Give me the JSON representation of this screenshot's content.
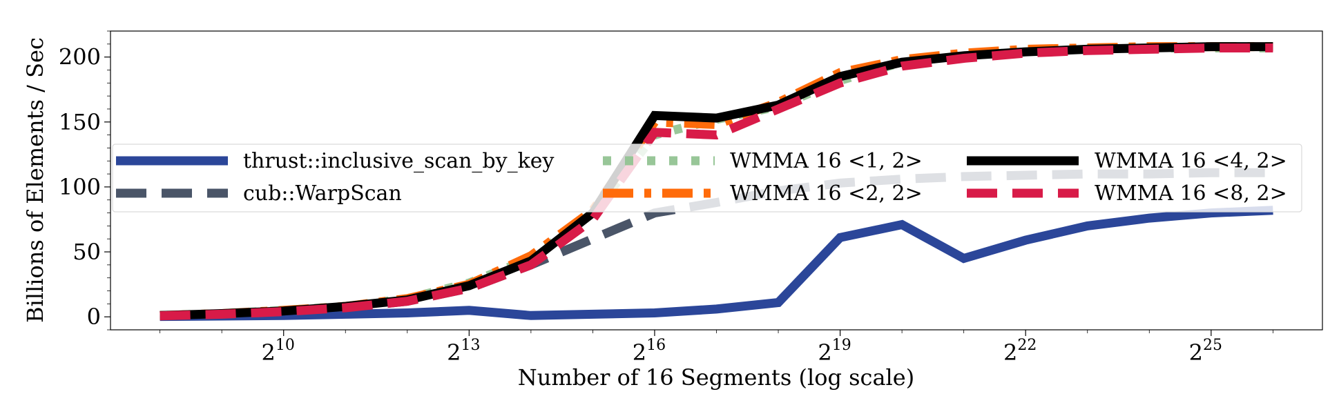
{
  "chart_data": {
    "type": "line",
    "title": "",
    "xlabel": "Number of 16 Segments (log scale)",
    "ylabel": "Billions of Elements / Sec",
    "x_scale": "log2",
    "x_ticks": [
      10,
      13,
      16,
      19,
      22,
      25
    ],
    "x_tick_labels": [
      "2",
      "2",
      "2",
      "2",
      "2",
      "2"
    ],
    "x_tick_exponents": [
      "10",
      "13",
      "16",
      "19",
      "22",
      "25"
    ],
    "xlim": [
      7.2,
      26.8
    ],
    "ylim": [
      -10,
      220
    ],
    "y_ticks": [
      0,
      50,
      100,
      150,
      200
    ],
    "y_tick_labels": [
      "0",
      "50",
      "100",
      "150",
      "200"
    ],
    "legend_position": "center (3 columns)",
    "grid": false,
    "x": [
      8,
      9,
      10,
      11,
      12,
      13,
      14,
      15,
      16,
      17,
      18,
      19,
      20,
      21,
      22,
      23,
      24,
      25,
      26
    ],
    "series": [
      {
        "name": "thrust::inclusive_scan_by_key",
        "color": "#2b4699",
        "style": "solid",
        "values": [
          0.3,
          0.6,
          1,
          2,
          3,
          5,
          1,
          2,
          3,
          6,
          11,
          61,
          71,
          45,
          59,
          70,
          76,
          80,
          82
        ]
      },
      {
        "name": "cub::WarpScan",
        "color": "#4a5568",
        "style": "dashed",
        "values": [
          0.8,
          2,
          4,
          7,
          12,
          22,
          40,
          60,
          80,
          88,
          97,
          103,
          106,
          108,
          109,
          110,
          110,
          111,
          111
        ]
      },
      {
        "name": "WMMA 16 <1, 2>",
        "color": "#93c493",
        "style": "dotted",
        "values": [
          1,
          2.5,
          5,
          8,
          14,
          26,
          45,
          80,
          140,
          152,
          162,
          182,
          196,
          201,
          204,
          206,
          207,
          207,
          207
        ]
      },
      {
        "name": "WMMA 16 <2, 2>",
        "color": "#ff6b0a",
        "style": "dashdot",
        "values": [
          1,
          2.5,
          5,
          8,
          14,
          25,
          47,
          82,
          150,
          148,
          165,
          188,
          198,
          203,
          206,
          207,
          208,
          208,
          208
        ]
      },
      {
        "name": "WMMA 16 <4, 2>",
        "color": "#000000",
        "style": "solid",
        "values": [
          1,
          2.5,
          4.5,
          8,
          13,
          24,
          43,
          80,
          155,
          153,
          163,
          185,
          196,
          201,
          204,
          206,
          207,
          208,
          208
        ]
      },
      {
        "name": "WMMA 16 <8, 2>",
        "color": "#d81b48",
        "style": "dashed",
        "values": [
          0.8,
          2,
          4,
          7,
          12,
          22,
          40,
          75,
          142,
          140,
          160,
          180,
          193,
          199,
          203,
          205,
          206,
          207,
          207
        ]
      }
    ]
  }
}
